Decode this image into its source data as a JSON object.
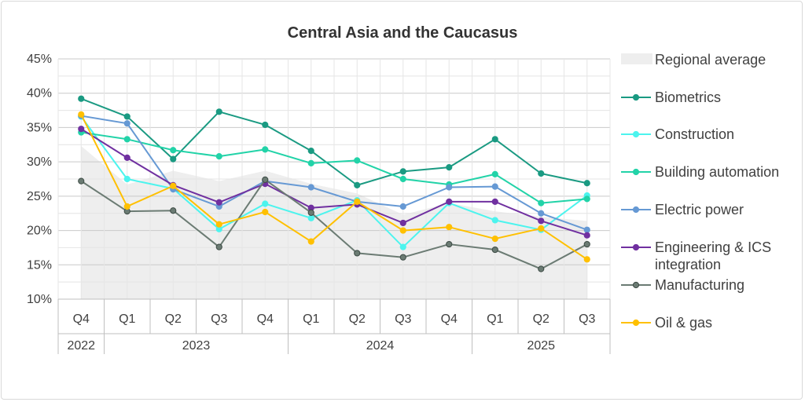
{
  "chart_data": {
    "type": "line",
    "title": "Central Asia and the Caucasus",
    "xlabel": "",
    "ylabel": "",
    "ylim": [
      10,
      45
    ],
    "yticks": [
      "10%",
      "15%",
      "20%",
      "25%",
      "30%",
      "35%",
      "40%",
      "45%"
    ],
    "categories": [
      "Q4",
      "Q1",
      "Q2",
      "Q3",
      "Q4",
      "Q1",
      "Q2",
      "Q3",
      "Q4",
      "Q1",
      "Q2",
      "Q3"
    ],
    "year_groups": [
      {
        "label": "2022",
        "count": 1
      },
      {
        "label": "2023",
        "count": 4
      },
      {
        "label": "2024",
        "count": 4
      },
      {
        "label": "2025",
        "count": 3
      }
    ],
    "grid": true,
    "legend_position": "right",
    "area": {
      "name": "Regional average",
      "color": "#eeeeee",
      "values": [
        32.3,
        26.7,
        28.7,
        27.2,
        28.7,
        26.8,
        25.4,
        22.3,
        24.0,
        22.8,
        22.0,
        21.4
      ]
    },
    "series": [
      {
        "name": "Biometrics",
        "color": "#1a9a82",
        "values": [
          39.2,
          36.6,
          30.4,
          37.3,
          35.4,
          31.6,
          26.6,
          28.6,
          29.2,
          33.3,
          28.3,
          26.9
        ]
      },
      {
        "name": "Construction",
        "color": "#4cf4ee",
        "values": [
          36.6,
          27.5,
          26.1,
          20.2,
          23.9,
          21.8,
          24.4,
          17.6,
          24.0,
          21.5,
          20.1,
          25.1
        ]
      },
      {
        "name": "Building automation",
        "color": "#22d3a8",
        "values": [
          34.3,
          33.3,
          31.7,
          30.8,
          31.8,
          29.8,
          30.2,
          27.5,
          26.7,
          28.2,
          24.0,
          24.6
        ]
      },
      {
        "name": "Electric power",
        "color": "#6699d4",
        "values": [
          36.7,
          35.6,
          26.0,
          23.5,
          27.2,
          26.3,
          24.2,
          23.5,
          26.3,
          26.4,
          22.5,
          20.1
        ]
      },
      {
        "name": "Engineering & ICS integration",
        "color": "#7030a0",
        "values": [
          34.8,
          30.6,
          26.6,
          24.1,
          26.8,
          23.3,
          23.8,
          21.1,
          24.2,
          24.2,
          21.4,
          19.3
        ]
      },
      {
        "name": "Manufacturing",
        "color": "#6b7b73",
        "values": [
          27.2,
          22.8,
          22.9,
          17.6,
          27.4,
          22.6,
          16.7,
          16.1,
          18.0,
          17.2,
          14.4,
          18.0
        ]
      },
      {
        "name": "Oil & gas",
        "color": "#ffc000",
        "values": [
          36.9,
          23.5,
          26.5,
          20.9,
          22.7,
          18.4,
          24.2,
          20.0,
          20.5,
          18.8,
          20.3,
          15.8
        ]
      }
    ]
  }
}
